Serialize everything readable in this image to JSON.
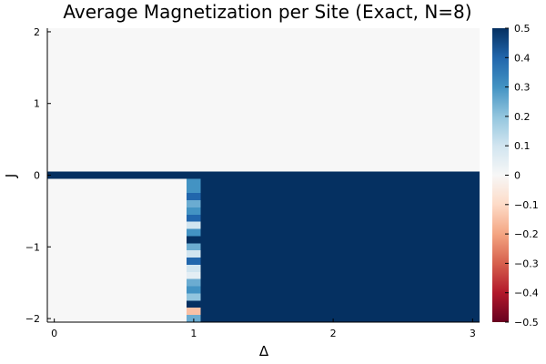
{
  "chart_data": {
    "type": "heatmap",
    "title": "Average Magnetization per Site (Exact, N=8)",
    "xlabel": "Δ",
    "ylabel": "J",
    "xlim": [
      -0.05,
      3.05
    ],
    "ylim": [
      -2.05,
      2.05
    ],
    "x_ticks": [
      "0",
      "1",
      "2",
      "3"
    ],
    "y_ticks": [
      "−2",
      "−1",
      "0",
      "1",
      "2"
    ],
    "x_tick_values": [
      0,
      1,
      2,
      3
    ],
    "y_tick_values": [
      -2,
      -1,
      0,
      1,
      2
    ],
    "colormap": "RdBu",
    "clim": [
      -0.5,
      0.5
    ],
    "colorbar_ticks": [
      "−0.5",
      "−0.4",
      "−0.3",
      "−0.2",
      "−0.1",
      "0",
      "0.1",
      "0.2",
      "0.3",
      "0.4",
      "0.5"
    ],
    "colorbar_tick_values": [
      -0.5,
      -0.4,
      -0.3,
      -0.2,
      -0.1,
      0,
      0.1,
      0.2,
      0.3,
      0.4,
      0.5
    ],
    "grid": false,
    "regions": [
      {
        "x": [
          -0.05,
          3.05
        ],
        "y": [
          0.0,
          2.05
        ],
        "value": 0.0
      },
      {
        "x": [
          -0.05,
          3.05
        ],
        "y": [
          -0.05,
          0.05
        ],
        "value": 0.5
      },
      {
        "x": [
          -0.05,
          0.95
        ],
        "y": [
          -2.05,
          -0.05
        ],
        "value": 0.0
      },
      {
        "x": [
          1.05,
          3.05
        ],
        "y": [
          -2.05,
          -0.05
        ],
        "value": 0.5
      }
    ],
    "transition_column": {
      "x": [
        0.95,
        1.05
      ],
      "y_step": 0.1,
      "y_start": -0.05,
      "values_top_to_bottom": [
        0.3,
        0.3,
        0.4,
        0.25,
        0.3,
        0.4,
        0.1,
        0.3,
        0.5,
        0.25,
        0.1,
        0.4,
        0.1,
        0.05,
        0.25,
        0.3,
        0.2,
        0.5,
        -0.15,
        0.25
      ]
    }
  }
}
